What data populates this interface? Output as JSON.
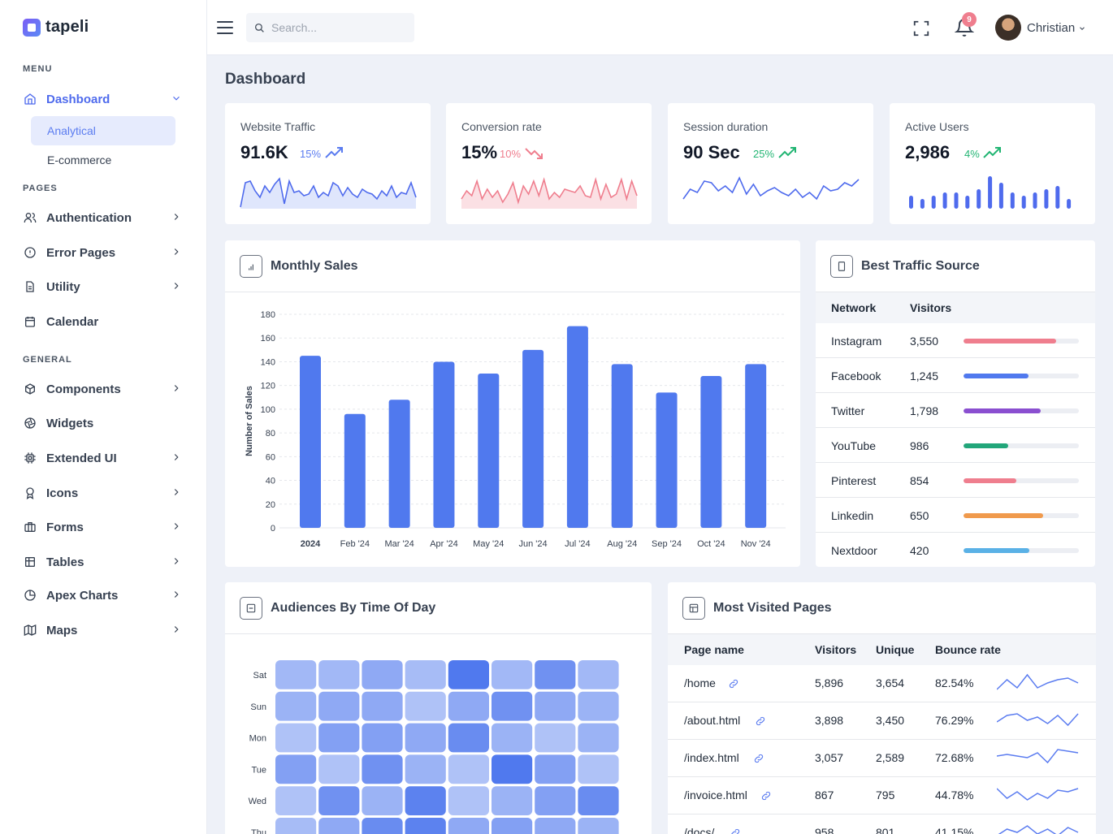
{
  "brand": {
    "name": "tapeli"
  },
  "sidebar": {
    "menu_title": "MENU",
    "dashboard": {
      "label": "Dashboard",
      "icon": "home-icon"
    },
    "sub_items": [
      {
        "label": "Analytical",
        "active": true
      },
      {
        "label": "E-commerce",
        "active": false
      }
    ],
    "pages_title": "PAGES",
    "pages": [
      {
        "label": "Authentication",
        "icon": "users-icon"
      },
      {
        "label": "Error Pages",
        "icon": "alert-circle-icon"
      },
      {
        "label": "Utility",
        "icon": "file-icon"
      },
      {
        "label": "Calendar",
        "icon": "calendar-icon"
      }
    ],
    "general_title": "GENERAL",
    "general": [
      {
        "label": "Components",
        "icon": "box-icon"
      },
      {
        "label": "Widgets",
        "icon": "aperture-icon"
      },
      {
        "label": "Extended UI",
        "icon": "cpu-icon"
      },
      {
        "label": "Icons",
        "icon": "award-icon"
      },
      {
        "label": "Forms",
        "icon": "briefcase-icon"
      },
      {
        "label": "Tables",
        "icon": "table-icon"
      },
      {
        "label": "Apex Charts",
        "icon": "pie-chart-icon"
      },
      {
        "label": "Maps",
        "icon": "map-icon"
      }
    ]
  },
  "topbar": {
    "search_placeholder": "Search...",
    "notification_count": "9",
    "user_name": "Christian"
  },
  "page": {
    "title": "Dashboard"
  },
  "stats": [
    {
      "label": "Website Traffic",
      "value": "91.6K",
      "change": "15%",
      "trend": "up",
      "color": "#5b7cf0"
    },
    {
      "label": "Conversion rate",
      "value": "15%",
      "change": "10%",
      "trend": "down",
      "color": "#ef7e8e"
    },
    {
      "label": "Session duration",
      "value": "90 Sec",
      "change": "25%",
      "trend": "up",
      "color": "#22b573"
    },
    {
      "label": "Active Users",
      "value": "2,986",
      "change": "4%",
      "trend": "up",
      "color": "#22b573"
    }
  ],
  "monthly_sales": {
    "title": "Monthly Sales",
    "chart_data": {
      "type": "bar",
      "categories": [
        "2024",
        "Feb '24",
        "Mar '24",
        "Apr '24",
        "May '24",
        "Jun '24",
        "Jul '24",
        "Aug '24",
        "Sep '24",
        "Oct '24",
        "Nov '24"
      ],
      "values": [
        145,
        96,
        108,
        140,
        130,
        150,
        170,
        138,
        114,
        128,
        138
      ],
      "ylabel": "Number of Sales",
      "ylim": [
        0,
        180
      ],
      "yticks": [
        "0",
        "20",
        "40",
        "60",
        "80",
        "100",
        "120",
        "140",
        "160",
        "180"
      ],
      "grid": true,
      "color": "#5079ee"
    }
  },
  "traffic_source": {
    "title": "Best Traffic Source",
    "headers": {
      "network": "Network",
      "visitors": "Visitors"
    },
    "rows": [
      {
        "network": "Instagram",
        "visitors": "3,550",
        "fill": 0.8,
        "color": "#ef7e8e"
      },
      {
        "network": "Facebook",
        "visitors": "1,245",
        "fill": 0.56,
        "color": "#5079ee"
      },
      {
        "network": "Twitter",
        "visitors": "1,798",
        "fill": 0.67,
        "color": "#8a4fd0"
      },
      {
        "network": "YouTube",
        "visitors": "986",
        "fill": 0.39,
        "color": "#22a67a"
      },
      {
        "network": "Pinterest",
        "visitors": "854",
        "fill": 0.46,
        "color": "#ef7e8e"
      },
      {
        "network": "Linkedin",
        "visitors": "650",
        "fill": 0.69,
        "color": "#f09a4c"
      },
      {
        "network": "Nextdoor",
        "visitors": "420",
        "fill": 0.57,
        "color": "#5ab1e6"
      }
    ]
  },
  "audiences": {
    "title": "Audiences By Time Of Day",
    "chart_data": {
      "type": "heatmap",
      "rows": [
        "Sat",
        "Sun",
        "Mon",
        "Tue",
        "Wed",
        "Thu"
      ],
      "values": [
        [
          0.35,
          0.35,
          0.5,
          0.3,
          1.0,
          0.35,
          0.75,
          0.35
        ],
        [
          0.4,
          0.5,
          0.5,
          0.25,
          0.5,
          0.75,
          0.5,
          0.4
        ],
        [
          0.25,
          0.6,
          0.6,
          0.5,
          0.8,
          0.4,
          0.25,
          0.4
        ],
        [
          0.6,
          0.25,
          0.75,
          0.4,
          0.25,
          1.0,
          0.6,
          0.25
        ],
        [
          0.25,
          0.75,
          0.4,
          0.9,
          0.25,
          0.4,
          0.6,
          0.8
        ],
        [
          0.3,
          0.5,
          0.8,
          0.9,
          0.5,
          0.6,
          0.5,
          0.4
        ]
      ],
      "color": "#5079ee"
    }
  },
  "most_visited": {
    "title": "Most Visited Pages",
    "headers": {
      "page": "Page name",
      "visitors": "Visitors",
      "unique": "Unique",
      "bounce": "Bounce rate"
    },
    "rows": [
      {
        "page": "/home",
        "visitors": "5,896",
        "unique": "3,654",
        "bounce": "82.54%"
      },
      {
        "page": "/about.html",
        "visitors": "3,898",
        "unique": "3,450",
        "bounce": "76.29%"
      },
      {
        "page": "/index.html",
        "visitors": "3,057",
        "unique": "2,589",
        "bounce": "72.68%"
      },
      {
        "page": "/invoice.html",
        "visitors": "867",
        "unique": "795",
        "bounce": "44.78%"
      },
      {
        "page": "/docs/",
        "visitors": "958",
        "unique": "801",
        "bounce": "41.15%"
      }
    ]
  }
}
